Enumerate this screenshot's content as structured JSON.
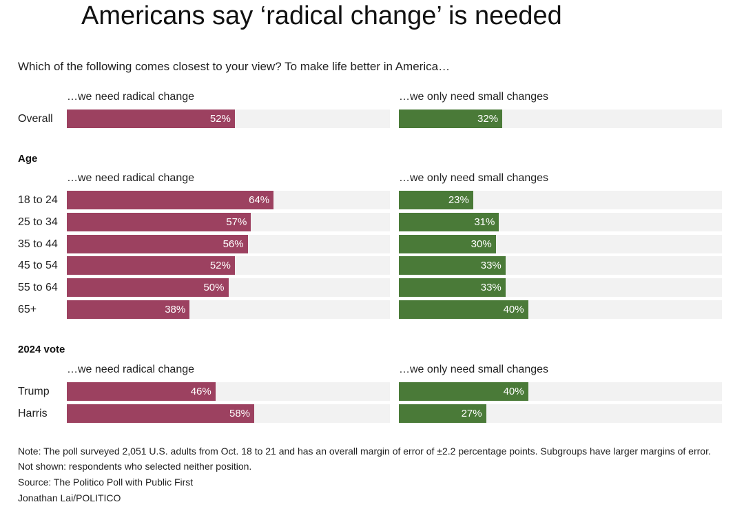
{
  "chart_data": {
    "type": "bar",
    "title": "Americans say ‘radical change’ is needed",
    "question": "Which of the following comes closest to your view? To make life better in America…",
    "series_labels": {
      "radical": "…we need radical change",
      "small": "…we only need small changes"
    },
    "colors": {
      "radical": "#9c4160",
      "small": "#4a7a38",
      "track": "#f2f2f2"
    },
    "xlim": [
      0,
      100
    ],
    "groups": [
      {
        "name": "",
        "rows": [
          {
            "label": "Overall",
            "radical": 52,
            "small": 32
          }
        ]
      },
      {
        "name": "Age",
        "rows": [
          {
            "label": "18 to 24",
            "radical": 64,
            "small": 23
          },
          {
            "label": "25 to 34",
            "radical": 57,
            "small": 31
          },
          {
            "label": "35 to 44",
            "radical": 56,
            "small": 30
          },
          {
            "label": "45 to 54",
            "radical": 52,
            "small": 33
          },
          {
            "label": "55 to 64",
            "radical": 50,
            "small": 33
          },
          {
            "label": "65+",
            "radical": 38,
            "small": 40
          }
        ]
      },
      {
        "name": "2024 vote",
        "rows": [
          {
            "label": "Trump",
            "radical": 46,
            "small": 40
          },
          {
            "label": "Harris",
            "radical": 58,
            "small": 27
          }
        ]
      }
    ]
  },
  "footer": {
    "note": "Note: The poll surveyed 2,051 U.S. adults from Oct. 18 to 21 and has an overall margin of error of ±2.2 percentage points. Subgroups have larger margins of error. Not shown: respondents who selected neither position.",
    "source": "Source: The Politico Poll with Public First",
    "credit": "Jonathan Lai/POLITICO"
  }
}
